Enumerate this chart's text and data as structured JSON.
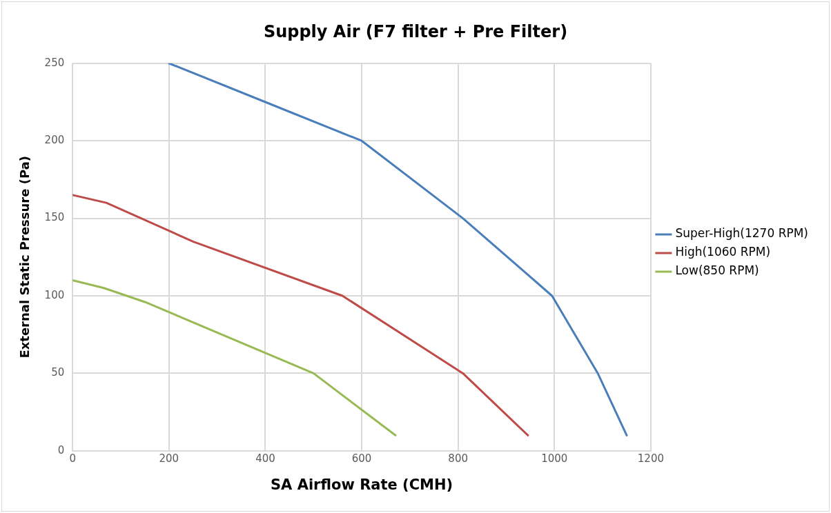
{
  "chart_data": {
    "type": "line",
    "title": "Supply Air (F7 filter + Pre Filter)",
    "xlabel": "SA Airflow Rate (CMH)",
    "ylabel": "External Static Pressure (Pa)",
    "series": [
      {
        "name": "Super-High(1270 RPM)",
        "color": "#4a7ebb",
        "x": [
          200,
          400,
          600,
          810,
          995,
          1090,
          1150
        ],
        "values": [
          250,
          225,
          200,
          150,
          100,
          50,
          10
        ]
      },
      {
        "name": "High(1060 RPM)",
        "color": "#be4b48",
        "x": [
          0,
          70,
          250,
          560,
          810,
          945
        ],
        "values": [
          165,
          160,
          135,
          100,
          50,
          10
        ]
      },
      {
        "name": "Low(850 RPM)",
        "color": "#98b954",
        "x": [
          0,
          65,
          150,
          500,
          670
        ],
        "values": [
          110,
          105,
          96,
          50,
          10
        ]
      }
    ],
    "xlim": [
      0,
      1200
    ],
    "xticks": [
      0,
      200,
      400,
      600,
      800,
      1000,
      1200
    ],
    "ylim": [
      0,
      250
    ],
    "yticks": [
      0,
      50,
      100,
      150,
      200,
      250
    ],
    "grid": true,
    "legend": "right",
    "marker": "none",
    "line_style": "solid"
  }
}
